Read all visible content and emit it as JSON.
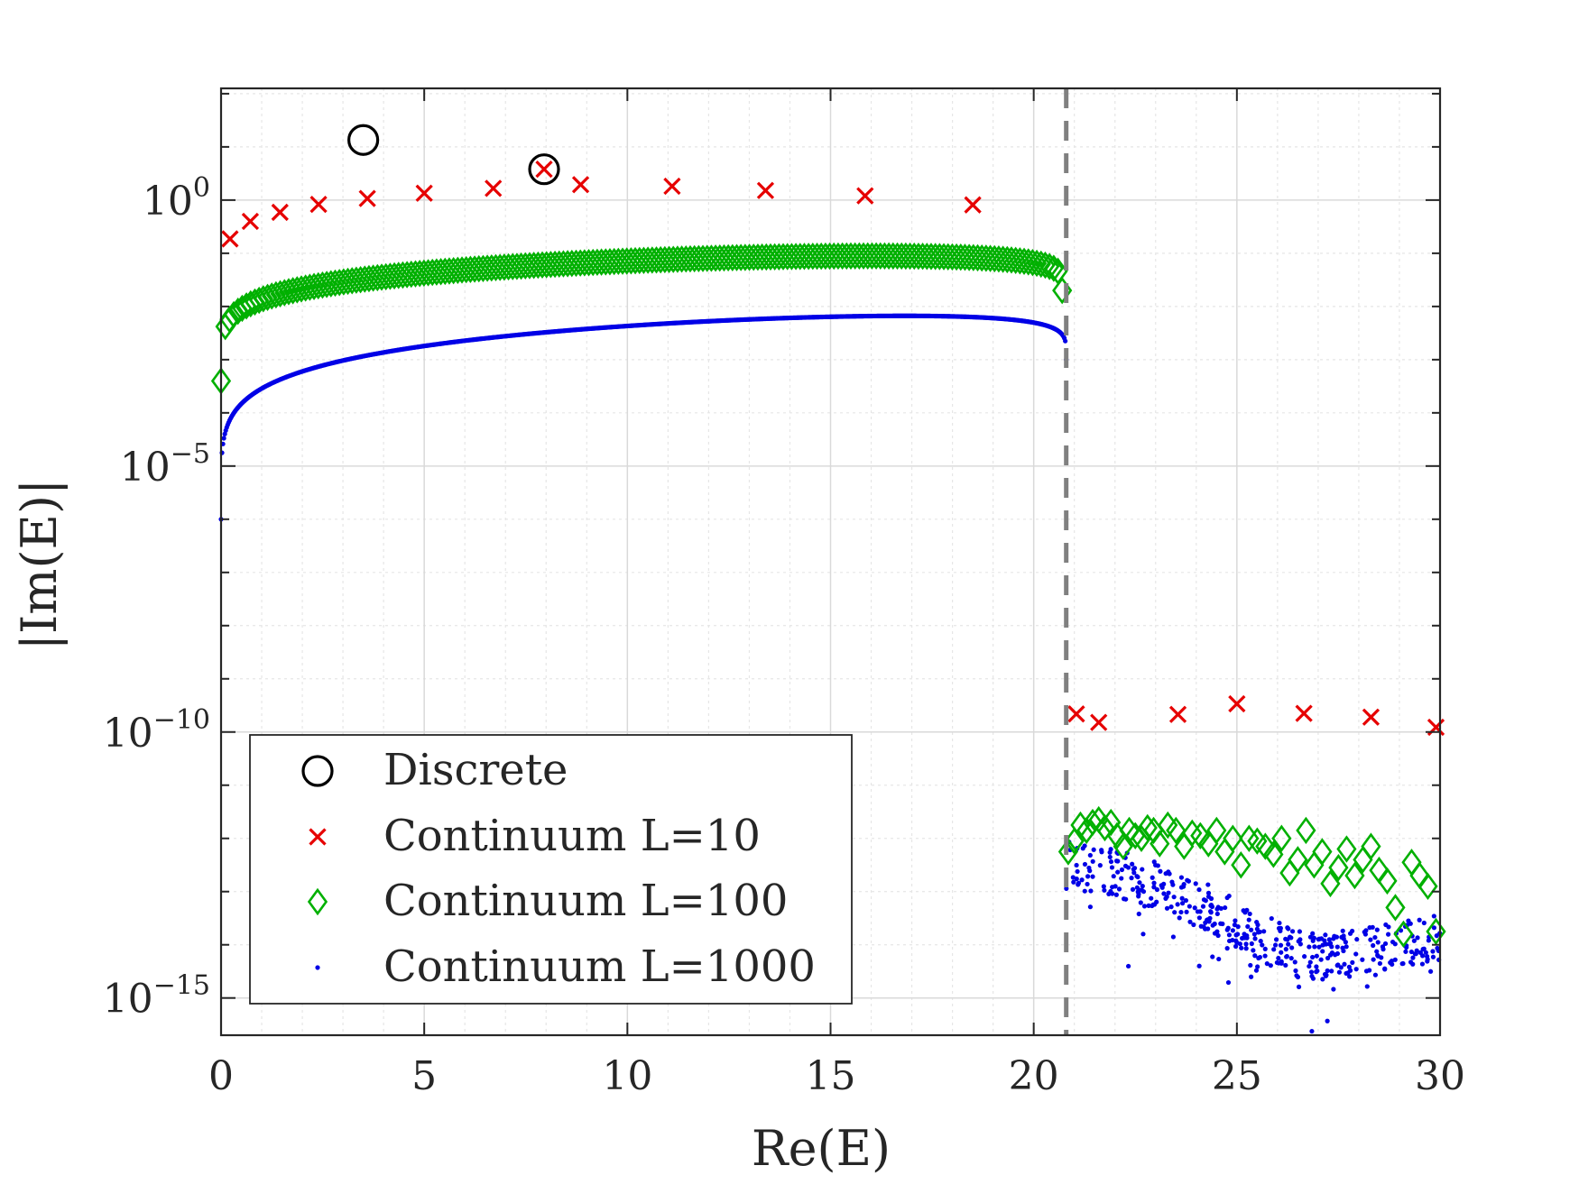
{
  "chart_data": {
    "type": "scatter",
    "xlabel": "Re(E)",
    "ylabel": "|Im(E)|",
    "xlim": [
      0,
      30
    ],
    "ylim_log10": [
      -15.7,
      2.1
    ],
    "yscale": "log",
    "grid": true,
    "minor_grid": true,
    "x_ticks": [
      0,
      5,
      10,
      15,
      20,
      25,
      30
    ],
    "x_tick_labels": [
      "0",
      "5",
      "10",
      "15",
      "20",
      "25",
      "30"
    ],
    "y_tick_labels": [
      {
        "base": "10",
        "exp": "0",
        "value_log10": 0
      },
      {
        "base": "10",
        "exp": "−5",
        "value_log10": -5
      },
      {
        "base": "10",
        "exp": "−10",
        "value_log10": -10
      },
      {
        "base": "10",
        "exp": "−15",
        "value_log10": -15
      }
    ],
    "threshold_line": {
      "x": 20.8,
      "style": "dashed",
      "color": "#808080"
    },
    "legend_position": "lower-left",
    "series": [
      {
        "name": "Discrete",
        "marker": "circle-open",
        "color": "#000000",
        "x": [
          3.5,
          7.95
        ],
        "log10_y": [
          1.13,
          0.58
        ]
      },
      {
        "name": "Continuum L=10",
        "marker": "x",
        "color": "#e60000",
        "x": [
          0.22,
          0.72,
          1.45,
          2.4,
          3.6,
          5.0,
          6.7,
          7.95,
          8.85,
          11.1,
          13.4,
          15.85,
          18.5,
          21.05,
          21.6,
          23.55,
          25.0,
          26.65,
          28.3,
          29.9
        ],
        "log10_y": [
          -0.73,
          -0.4,
          -0.23,
          -0.08,
          0.03,
          0.13,
          0.22,
          0.58,
          0.29,
          0.26,
          0.18,
          0.08,
          -0.09,
          -9.66,
          -9.82,
          -9.67,
          -9.47,
          -9.65,
          -9.72,
          -9.91
        ]
      },
      {
        "name": "Continuum L=100",
        "marker": "diamond-open",
        "color": "#00b000",
        "generated": {
          "left_band": {
            "count": 200,
            "x_from": 0.0,
            "x_to": 20.7,
            "log10_peak": -0.75,
            "log10_at_zero": -3.4,
            "log10_at_threshold": -1.7
          },
          "right_scatter_x": [
            20.85,
            21.0,
            21.15,
            21.3,
            21.45,
            21.6,
            21.75,
            21.9,
            22.05,
            22.2,
            22.35,
            22.5,
            22.65,
            22.8,
            22.95,
            23.1,
            23.3,
            23.5,
            23.7,
            23.9,
            24.1,
            24.3,
            24.5,
            24.7,
            24.9,
            25.1,
            25.3,
            25.5,
            25.7,
            25.9,
            26.1,
            26.3,
            26.5,
            26.7,
            26.9,
            27.1,
            27.3,
            27.5,
            27.7,
            27.9,
            28.1,
            28.3,
            28.5,
            28.7,
            28.9,
            29.1,
            29.3,
            29.5,
            29.7,
            29.9
          ],
          "right_scatter_log10_y": [
            -12.25,
            -12.05,
            -11.75,
            -11.85,
            -11.7,
            -11.65,
            -11.8,
            -11.7,
            -11.95,
            -12.15,
            -11.85,
            -11.95,
            -12.0,
            -11.8,
            -11.85,
            -12.1,
            -11.75,
            -11.85,
            -12.15,
            -11.9,
            -11.95,
            -12.1,
            -11.85,
            -12.25,
            -12.0,
            -12.5,
            -12.0,
            -12.05,
            -12.15,
            -12.3,
            -12.0,
            -12.65,
            -12.4,
            -11.85,
            -12.5,
            -12.25,
            -12.85,
            -12.55,
            -12.2,
            -12.7,
            -12.4,
            -12.15,
            -12.6,
            -12.8,
            -13.3,
            -13.8,
            -12.45,
            -12.7,
            -12.9,
            -13.75
          ]
        }
      },
      {
        "name": "Continuum L=1000",
        "marker": "dot",
        "color": "#0000e6",
        "generated": {
          "left_curve": {
            "count": 900,
            "x_from": 0.0,
            "x_to": 20.8,
            "log10_peak": -1.75,
            "log10_at_zero": -6.0,
            "log10_at_threshold": -3.0
          },
          "right_cloud": {
            "count": 420,
            "x_from": 20.8,
            "x_to": 30.0,
            "log10_start": -12.5,
            "log10_end": -14.0,
            "spread": 0.9,
            "seed": 7
          }
        }
      }
    ]
  }
}
